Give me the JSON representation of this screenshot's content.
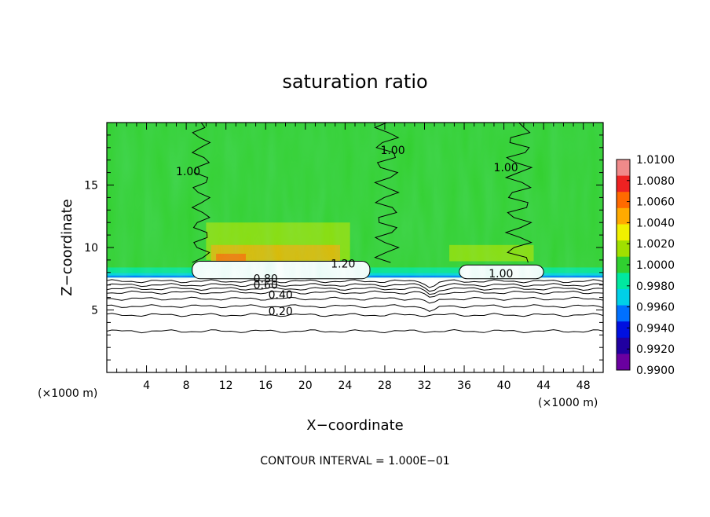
{
  "chart_data": {
    "type": "heatmap",
    "title": "saturation ratio",
    "xlabel": "X−coordinate",
    "ylabel": "Z−coordinate",
    "x_unit_left": "(×1000 m)",
    "x_unit_right": "(×1000 m)",
    "footer": "CONTOUR INTERVAL = 1.000E−01",
    "xlim": [
      0,
      50
    ],
    "ylim": [
      0,
      20
    ],
    "x_ticks": [
      4,
      8,
      12,
      16,
      20,
      24,
      28,
      32,
      36,
      40,
      44,
      48
    ],
    "y_ticks": [
      5,
      10,
      15
    ],
    "x_minor_step": 1,
    "y_minor_step": 1,
    "colorbar": {
      "labels": [
        "1.0100",
        "1.0080",
        "1.0060",
        "1.0040",
        "1.0020",
        "1.0000",
        "0.9980",
        "0.9960",
        "0.9940",
        "0.9920",
        "0.9900"
      ],
      "colors": [
        "#f08a8a",
        "#ee2222",
        "#ff6a00",
        "#ffaa00",
        "#f0f000",
        "#a0e000",
        "#30d030",
        "#00e8a0",
        "#00d0e8",
        "#0070ff",
        "#0010e0",
        "#2000a0",
        "#6a00a0"
      ],
      "range": [
        0.99,
        1.01
      ]
    },
    "contour_labels": [
      {
        "text": "1.00",
        "x": 8.2,
        "y": 15.8
      },
      {
        "text": "1.00",
        "x": 28.8,
        "y": 17.5
      },
      {
        "text": "1.00",
        "x": 40.2,
        "y": 16.1
      },
      {
        "text": "1.20",
        "x": 23.8,
        "y": 8.4
      },
      {
        "text": "1.00",
        "x": 39.7,
        "y": 7.6
      },
      {
        "text": "0.80",
        "x": 16.0,
        "y": 7.2
      },
      {
        "text": "0.60",
        "x": 16.0,
        "y": 6.7
      },
      {
        "text": "0.40",
        "x": 17.5,
        "y": 5.9
      },
      {
        "text": "0.20",
        "x": 17.5,
        "y": 4.6
      }
    ],
    "stable_contours": [
      0.2,
      0.3,
      0.4,
      0.5,
      0.6,
      0.7,
      0.8,
      0.9
    ],
    "stable_contour_heights_km": [
      3.3,
      4.6,
      5.3,
      5.9,
      6.4,
      6.7,
      7.0,
      7.3
    ]
  }
}
